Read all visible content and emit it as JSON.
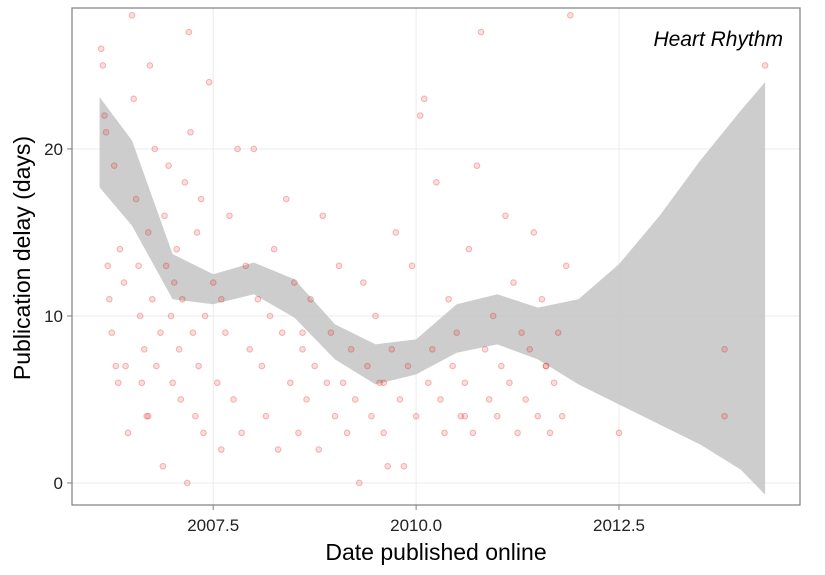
{
  "chart_data": {
    "type": "scatter",
    "annotation": "Heart Rhythm",
    "x_label": "Date published online",
    "y_label": "Publication delay (days)",
    "color": "#e41a1c",
    "x": [
      2006.12,
      2006.14,
      2006.16,
      2006.18,
      2006.2,
      2006.22,
      2006.25,
      2006.28,
      2006.3,
      2006.33,
      2006.35,
      2006.4,
      2006.42,
      2006.45,
      2006.5,
      2006.52,
      2006.55,
      2006.58,
      2006.6,
      2006.62,
      2006.65,
      2006.68,
      2006.7,
      2006.72,
      2006.75,
      2006.78,
      2006.8,
      2006.85,
      2006.88,
      2006.9,
      2006.92,
      2006.95,
      2006.98,
      2007.0,
      2007.02,
      2007.05,
      2007.08,
      2007.1,
      2007.12,
      2007.15,
      2007.18,
      2007.2,
      2007.22,
      2007.25,
      2007.28,
      2007.3,
      2007.32,
      2007.35,
      2007.38,
      2007.4,
      2007.45,
      2007.5,
      2007.55,
      2007.6,
      2007.65,
      2007.7,
      2007.75,
      2007.8,
      2007.85,
      2007.9,
      2007.95,
      2008.0,
      2008.05,
      2008.1,
      2008.15,
      2008.2,
      2008.25,
      2008.3,
      2008.35,
      2008.4,
      2008.45,
      2008.5,
      2008.55,
      2008.6,
      2008.65,
      2008.7,
      2008.75,
      2008.8,
      2008.85,
      2008.9,
      2008.95,
      2009.0,
      2009.05,
      2009.1,
      2009.15,
      2009.2,
      2009.25,
      2009.3,
      2009.35,
      2009.4,
      2009.45,
      2009.5,
      2009.55,
      2009.6,
      2009.65,
      2009.7,
      2009.75,
      2009.8,
      2009.85,
      2009.9,
      2009.95,
      2010.0,
      2010.05,
      2010.1,
      2010.15,
      2010.2,
      2010.25,
      2010.3,
      2010.35,
      2010.4,
      2010.45,
      2010.5,
      2010.55,
      2010.6,
      2010.65,
      2010.7,
      2010.75,
      2010.8,
      2010.85,
      2010.9,
      2010.95,
      2011.0,
      2011.05,
      2011.1,
      2011.15,
      2011.2,
      2011.25,
      2011.3,
      2011.35,
      2011.4,
      2011.45,
      2011.5,
      2011.55,
      2011.6,
      2011.65,
      2011.7,
      2011.75,
      2011.8,
      2011.85,
      2011.9,
      2012.5,
      2013.8,
      2013.8,
      2014.3,
      2006.7,
      2007.6,
      2008.6,
      2009.6,
      2010.6,
      2011.6
    ],
    "values": [
      26,
      25,
      22,
      21,
      13,
      11,
      9,
      19,
      7,
      6,
      14,
      12,
      7,
      3,
      28,
      23,
      17,
      13,
      10,
      6,
      8,
      4,
      15,
      25,
      11,
      20,
      7,
      9,
      1,
      16,
      13,
      19,
      10,
      6,
      12,
      14,
      8,
      5,
      11,
      18,
      0,
      27,
      21,
      9,
      4,
      15,
      7,
      17,
      3,
      10,
      24,
      12,
      6,
      2,
      9,
      16,
      5,
      20,
      3,
      13,
      8,
      20,
      11,
      7,
      4,
      10,
      14,
      2,
      9,
      17,
      6,
      12,
      3,
      8,
      5,
      11,
      7,
      2,
      16,
      6,
      9,
      4,
      13,
      6,
      3,
      8,
      5,
      0,
      12,
      7,
      4,
      10,
      6,
      3,
      1,
      8,
      15,
      5,
      1,
      7,
      13,
      4,
      22,
      23,
      6,
      8,
      18,
      5,
      3,
      11,
      7,
      9,
      4,
      6,
      14,
      3,
      19,
      27,
      8,
      5,
      10,
      4,
      7,
      16,
      6,
      12,
      3,
      9,
      5,
      8,
      15,
      4,
      11,
      7,
      3,
      6,
      9,
      4,
      13,
      28,
      3,
      8,
      4,
      25,
      4,
      11,
      9,
      6,
      4,
      7
    ],
    "band": {
      "color": "#c8c8c8",
      "x": [
        2006.1,
        2006.5,
        2007.0,
        2007.5,
        2008.0,
        2008.5,
        2009.0,
        2009.5,
        2010.0,
        2010.5,
        2011.0,
        2011.5,
        2012.0,
        2012.5,
        2013.0,
        2013.5,
        2014.0,
        2014.3
      ],
      "upper": [
        23.1,
        20.5,
        13.7,
        12.5,
        13.2,
        12.2,
        9.5,
        8.3,
        8.6,
        10.7,
        11.3,
        10.5,
        11.0,
        13.1,
        16.0,
        19.3,
        22.3,
        24.0
      ],
      "lower": [
        17.7,
        15.4,
        11.0,
        10.7,
        11.3,
        9.9,
        7.4,
        5.9,
        6.5,
        7.8,
        8.3,
        7.4,
        5.9,
        4.7,
        3.5,
        2.3,
        0.8,
        -0.7
      ]
    },
    "xlim": [
      2005.76,
      2014.73
    ],
    "ylim": [
      -1.32,
      28.44
    ],
    "xticks": [
      2007.5,
      {
        "value": 2010.0,
        "label": "2010.0"
      },
      2012.5
    ],
    "yticks": [
      0,
      10,
      20
    ],
    "grid": true
  }
}
